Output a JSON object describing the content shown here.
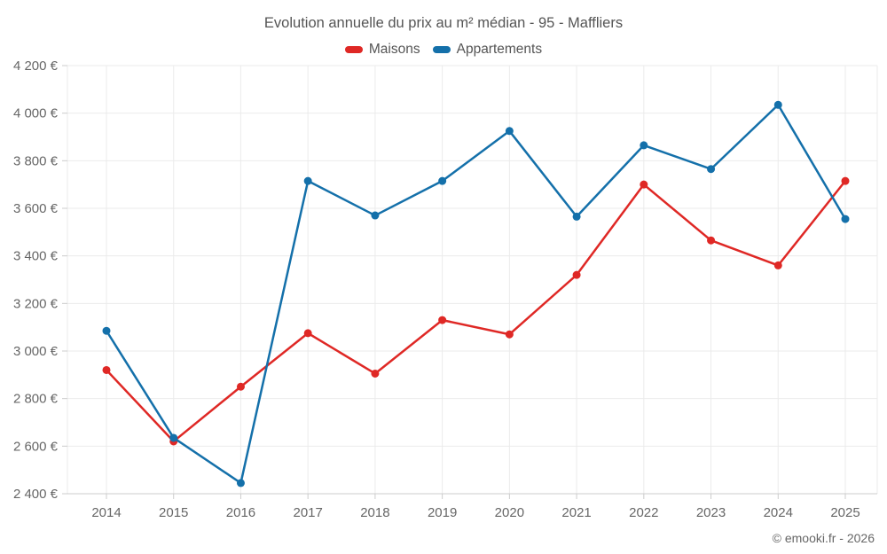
{
  "chart_data": {
    "type": "line",
    "title": "Evolution annuelle du prix au m² médian - 95 - Maffliers",
    "footer": "© emooki.fr - 2026",
    "categories": [
      "2014",
      "2015",
      "2016",
      "2017",
      "2018",
      "2019",
      "2020",
      "2021",
      "2022",
      "2023",
      "2024",
      "2025"
    ],
    "series": [
      {
        "name": "Maisons",
        "color": "#df2825",
        "values": [
          2920,
          2620,
          2850,
          3075,
          2905,
          3130,
          3070,
          3320,
          3700,
          3465,
          3360,
          3715
        ]
      },
      {
        "name": "Appartements",
        "color": "#1470aa",
        "values": [
          3085,
          2635,
          2445,
          3715,
          3570,
          3715,
          3925,
          3565,
          3865,
          3765,
          4035,
          3555
        ]
      }
    ],
    "ylim": [
      2400,
      4200
    ],
    "y_tick_step": 200,
    "y_tick_labels": [
      "2 400 €",
      "2 600 €",
      "2 800 €",
      "3 000 €",
      "3 200 €",
      "3 400 €",
      "3 600 €",
      "3 800 €",
      "4 000 €",
      "4 200 €"
    ],
    "grid": true,
    "legend_position": "top",
    "colors": {
      "grid_line": "#ebebeb",
      "axis_line": "#cccccc",
      "tick_mark": "#cccccc",
      "label_text": "#666666",
      "title_text": "#555555"
    }
  }
}
